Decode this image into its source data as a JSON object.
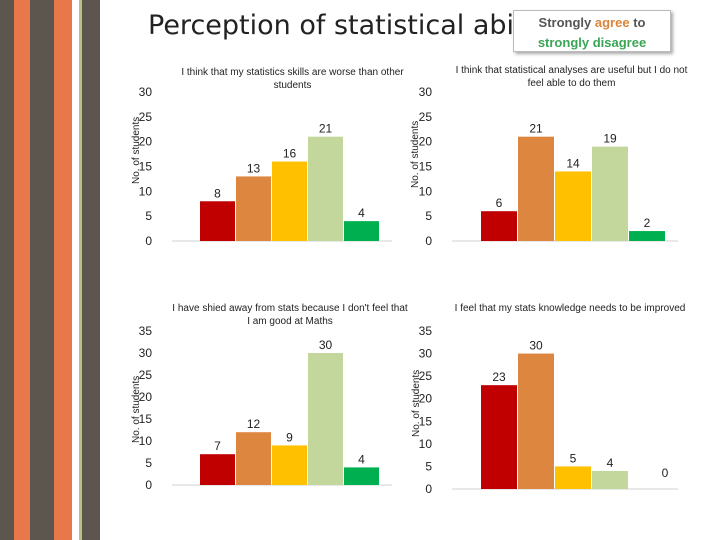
{
  "page": {
    "title": "Perception of statistical ability",
    "legend": {
      "part1": "Strongly agree",
      "part2": " to",
      "part3": "strongly disagree"
    }
  },
  "colors": {
    "bars": [
      "#c00000",
      "#dd8640",
      "#ffc000",
      "#c3d69b",
      "#00b050"
    ],
    "stripes": [
      "#5d564e",
      "#e8774a",
      "#5d564e",
      "#e8774a",
      "#b8c285",
      "#5d564e"
    ]
  },
  "chart_data": [
    {
      "type": "bar",
      "title": "I think that my statistics skills are worse than other students",
      "ylabel": "No. of students",
      "ylim": [
        0,
        30
      ],
      "yticks": [
        0,
        5,
        10,
        15,
        20,
        25,
        30
      ],
      "values": [
        8,
        13,
        16,
        21,
        4
      ],
      "value_labels": [
        "8",
        "13",
        "16",
        "21",
        "4"
      ]
    },
    {
      "type": "bar",
      "title": "I think that statistical analyses are useful but I do not feel able to do them",
      "ylabel": "No. of students",
      "ylim": [
        0,
        30
      ],
      "yticks": [
        0,
        5,
        10,
        15,
        20,
        25,
        30
      ],
      "values": [
        6,
        21,
        14,
        19,
        2
      ],
      "value_labels": [
        "6",
        "21",
        "14",
        "19",
        "2"
      ]
    },
    {
      "type": "bar",
      "title": "I have shied away from stats because I don't feel that I am good at Maths",
      "ylabel": "No. of students",
      "ylim": [
        0,
        35
      ],
      "yticks": [
        0,
        5,
        10,
        15,
        20,
        25,
        30,
        35
      ],
      "values": [
        7,
        12,
        9,
        30,
        4
      ],
      "value_labels": [
        "7",
        "12",
        "9",
        "30",
        "4"
      ]
    },
    {
      "type": "bar",
      "title": "I feel that my stats knowledge needs to be improved",
      "ylabel": "No. of students",
      "ylim": [
        0,
        35
      ],
      "yticks": [
        0,
        5,
        10,
        15,
        20,
        25,
        30,
        35
      ],
      "values": [
        23,
        30,
        5,
        4,
        0
      ],
      "value_labels": [
        "23",
        "30",
        "5",
        "4",
        "0"
      ]
    }
  ]
}
